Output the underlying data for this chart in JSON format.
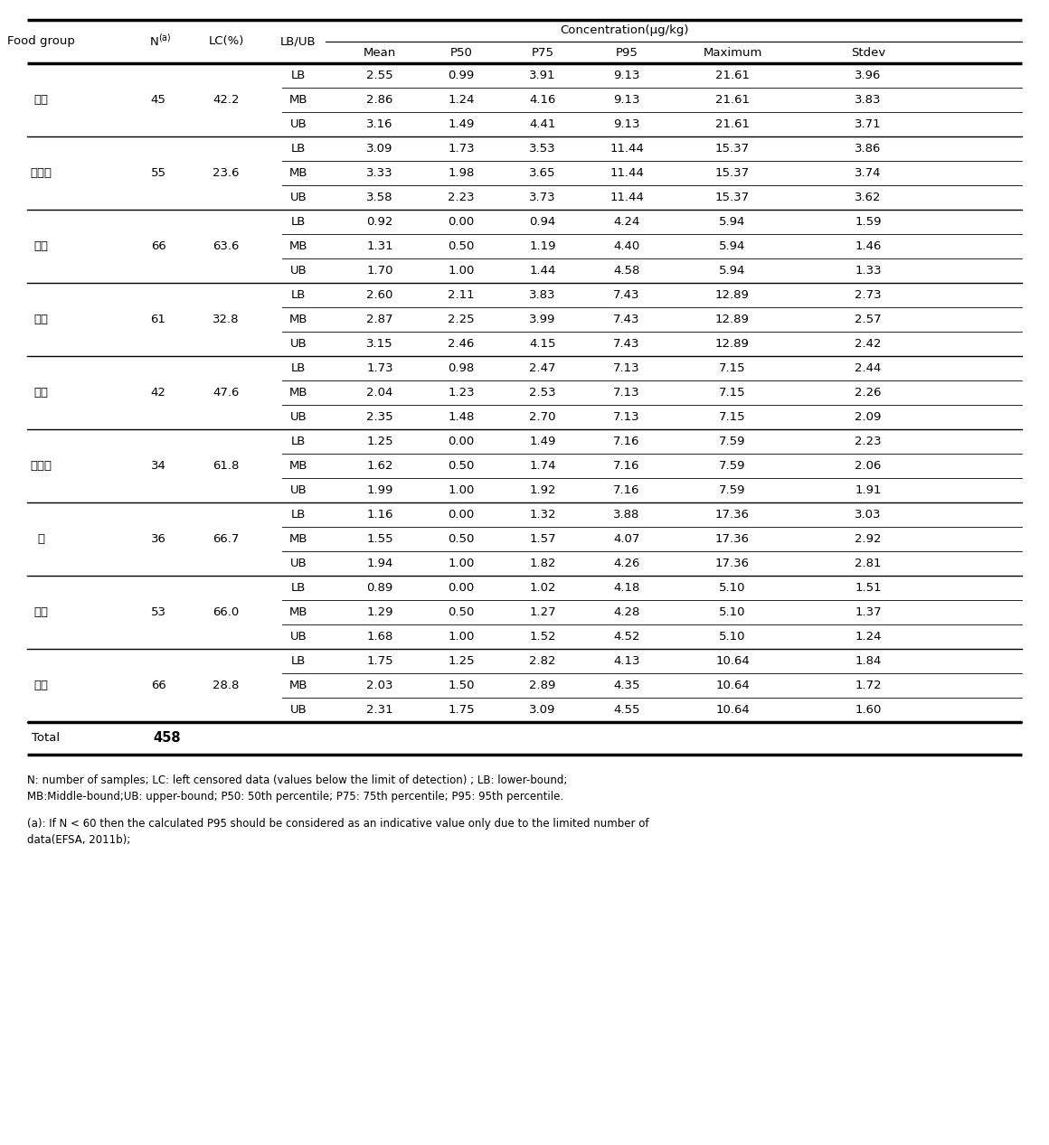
{
  "food_groups": [
    {
      "name": "기장",
      "n": "45",
      "lc": "42.2",
      "rows": [
        [
          "LB",
          "2.55",
          "0.99",
          "3.91",
          "9.13",
          "21.61",
          "3.96"
        ],
        [
          "MB",
          "2.86",
          "1.24",
          "4.16",
          "9.13",
          "21.61",
          "3.83"
        ],
        [
          "UB",
          "3.16",
          "1.49",
          "4.41",
          "9.13",
          "21.61",
          "3.71"
        ]
      ]
    },
    {
      "name": "밀가루",
      "n": "55",
      "lc": "23.6",
      "rows": [
        [
          "LB",
          "3.09",
          "1.73",
          "3.53",
          "11.44",
          "15.37",
          "3.86"
        ],
        [
          "MB",
          "3.33",
          "1.98",
          "3.65",
          "11.44",
          "15.37",
          "3.74"
        ],
        [
          "UB",
          "3.58",
          "2.23",
          "3.73",
          "11.44",
          "15.37",
          "3.62"
        ]
      ]
    },
    {
      "name": "백미",
      "n": "66",
      "lc": "63.6",
      "rows": [
        [
          "LB",
          "0.92",
          "0.00",
          "0.94",
          "4.24",
          "5.94",
          "1.59"
        ],
        [
          "MB",
          "1.31",
          "0.50",
          "1.19",
          "4.40",
          "5.94",
          "1.46"
        ],
        [
          "UB",
          "1.70",
          "1.00",
          "1.44",
          "4.58",
          "5.94",
          "1.33"
        ]
      ]
    },
    {
      "name": "보리",
      "n": "61",
      "lc": "32.8",
      "rows": [
        [
          "LB",
          "2.60",
          "2.11",
          "3.83",
          "7.43",
          "12.89",
          "2.73"
        ],
        [
          "MB",
          "2.87",
          "2.25",
          "3.99",
          "7.43",
          "12.89",
          "2.57"
        ],
        [
          "UB",
          "3.15",
          "2.46",
          "4.15",
          "7.43",
          "12.89",
          "2.42"
        ]
      ]
    },
    {
      "name": "수수",
      "n": "42",
      "lc": "47.6",
      "rows": [
        [
          "LB",
          "1.73",
          "0.98",
          "2.47",
          "7.13",
          "7.15",
          "2.44"
        ],
        [
          "MB",
          "2.04",
          "1.23",
          "2.53",
          "7.13",
          "7.15",
          "2.26"
        ],
        [
          "UB",
          "2.35",
          "1.48",
          "2.70",
          "7.13",
          "7.15",
          "2.09"
        ]
      ]
    },
    {
      "name": "옥수수",
      "n": "34",
      "lc": "61.8",
      "rows": [
        [
          "LB",
          "1.25",
          "0.00",
          "1.49",
          "7.16",
          "7.59",
          "2.23"
        ],
        [
          "MB",
          "1.62",
          "0.50",
          "1.74",
          "7.16",
          "7.59",
          "2.06"
        ],
        [
          "UB",
          "1.99",
          "1.00",
          "1.92",
          "7.16",
          "7.59",
          "1.91"
        ]
      ]
    },
    {
      "name": "조",
      "n": "36",
      "lc": "66.7",
      "rows": [
        [
          "LB",
          "1.16",
          "0.00",
          "1.32",
          "3.88",
          "17.36",
          "3.03"
        ],
        [
          "MB",
          "1.55",
          "0.50",
          "1.57",
          "4.07",
          "17.36",
          "2.92"
        ],
        [
          "UB",
          "1.94",
          "1.00",
          "1.82",
          "4.26",
          "17.36",
          "2.81"
        ]
      ]
    },
    {
      "name": "찰쌌",
      "n": "53",
      "lc": "66.0",
      "rows": [
        [
          "LB",
          "0.89",
          "0.00",
          "1.02",
          "4.18",
          "5.10",
          "1.51"
        ],
        [
          "MB",
          "1.29",
          "0.50",
          "1.27",
          "4.28",
          "5.10",
          "1.37"
        ],
        [
          "UB",
          "1.68",
          "1.00",
          "1.52",
          "4.52",
          "5.10",
          "1.24"
        ]
      ]
    },
    {
      "name": "현미",
      "n": "66",
      "lc": "28.8",
      "rows": [
        [
          "LB",
          "1.75",
          "1.25",
          "2.82",
          "4.13",
          "10.64",
          "1.84"
        ],
        [
          "MB",
          "2.03",
          "1.50",
          "2.89",
          "4.35",
          "10.64",
          "1.72"
        ],
        [
          "UB",
          "2.31",
          "1.75",
          "3.09",
          "4.55",
          "10.64",
          "1.60"
        ]
      ]
    }
  ],
  "total": "458",
  "footnote1": "N: number of samples; LC: left censored data (values below the limit of detection) ; LB: lower-bound;\nMB:Middle-bound;UB: upper-bound; P50: 50th percentile; P75: 75th percentile; P95: 95th percentile.",
  "footnote2": "(a): If N < 60 then the calculated P95 should be considered as an indicative value only due to the limited number of\ndata(EFSA, 2011b);",
  "bg_color": "#ffffff",
  "line_color": "#000000",
  "text_color": "#000000"
}
